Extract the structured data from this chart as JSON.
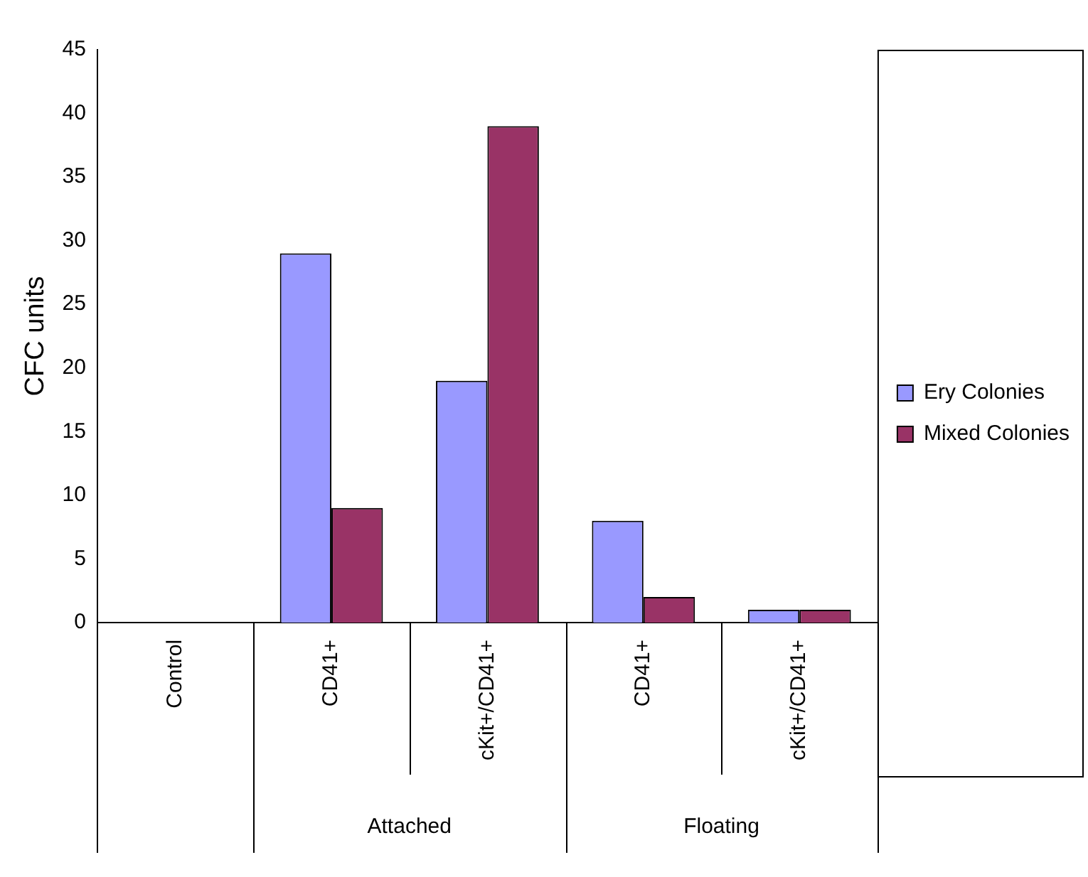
{
  "chart_data": {
    "type": "bar",
    "ylabel": "CFC units",
    "categories": [
      "Control",
      "CD41+",
      "cKit+/CD41+",
      "CD41+",
      "cKit+/CD41+"
    ],
    "series": [
      {
        "name": "Ery Colonies",
        "color": "#9999ff",
        "values": [
          0,
          29,
          19,
          8,
          1
        ]
      },
      {
        "name": "Mixed Colonies",
        "color": "#993366",
        "values": [
          0,
          9,
          39,
          2,
          1
        ]
      }
    ],
    "ylim": [
      0,
      45
    ],
    "yticks": [
      0,
      5,
      10,
      15,
      20,
      25,
      30,
      35,
      40,
      45
    ],
    "grid": false,
    "legend": "right",
    "annotations": [
      "Attached",
      "Floating"
    ]
  }
}
